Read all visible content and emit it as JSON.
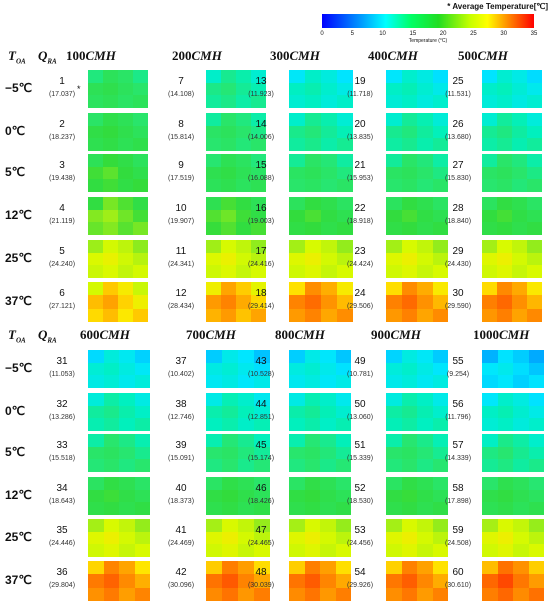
{
  "legend": {
    "title": "* Average Temperature[℃]",
    "ticks": [
      "0",
      "5",
      "10",
      "15",
      "20",
      "25",
      "30",
      "35"
    ],
    "label": "Temperature (°C)"
  },
  "header": {
    "t_main": "T",
    "t_sub": "OA",
    "q_main": "Q",
    "q_sub": "RA",
    "unit": "CMH"
  },
  "blocks": [
    {
      "flows": [
        "100",
        "200",
        "300",
        "400",
        "500"
      ],
      "temps": [
        "−5℃",
        "0℃",
        "5℃",
        "12℃",
        "25℃",
        "37℃"
      ],
      "cases": [
        [
          [
            "1",
            "(17.037)"
          ],
          [
            "7",
            "(14.108)"
          ],
          [
            "13",
            "(11.923)"
          ],
          [
            "19",
            "(11.718)"
          ],
          [
            "25",
            "(11.531)"
          ]
        ],
        [
          [
            "2",
            "(18.237)"
          ],
          [
            "8",
            "(15.814)"
          ],
          [
            "14",
            "(14.006)"
          ],
          [
            "20",
            "(13.835)"
          ],
          [
            "26",
            "(13.680)"
          ]
        ],
        [
          [
            "3",
            "(19.438)"
          ],
          [
            "9",
            "(17.519)"
          ],
          [
            "15",
            "(16.088)"
          ],
          [
            "21",
            "(15.953)"
          ],
          [
            "27",
            "(15.830)"
          ]
        ],
        [
          [
            "4",
            "(21.119)"
          ],
          [
            "10",
            "(19.907)"
          ],
          [
            "16",
            "(19.003)"
          ],
          [
            "22",
            "(18.918)"
          ],
          [
            "28",
            "(18.840)"
          ]
        ],
        [
          [
            "5",
            "(24.240)"
          ],
          [
            "11",
            "(24.341)"
          ],
          [
            "17",
            "(24.416)"
          ],
          [
            "23",
            "(24.424)"
          ],
          [
            "29",
            "(24.430)"
          ]
        ],
        [
          [
            "6",
            "(27.121)"
          ],
          [
            "12",
            "(28.434)"
          ],
          [
            "18",
            "(29.414)"
          ],
          [
            "24",
            "(29.506)"
          ],
          [
            "30",
            "(29.590)"
          ]
        ]
      ]
    },
    {
      "flows": [
        "600",
        "700",
        "800",
        "900",
        "1000"
      ],
      "temps": [
        "−5℃",
        "0℃",
        "5℃",
        "12℃",
        "25℃",
        "37℃"
      ],
      "cases": [
        [
          [
            "31",
            "(11.053)"
          ],
          [
            "37",
            "(10.402)"
          ],
          [
            "43",
            "(10.528)"
          ],
          [
            "49",
            "(10.781)"
          ],
          [
            "55",
            "(9.254)"
          ]
        ],
        [
          [
            "32",
            "(13.286)"
          ],
          [
            "38",
            "(12.746)"
          ],
          [
            "44",
            "(12.851)"
          ],
          [
            "50",
            "(13.060)"
          ],
          [
            "56",
            "(11.796)"
          ]
        ],
        [
          [
            "33",
            "(15.518)"
          ],
          [
            "39",
            "(15.091)"
          ],
          [
            "45",
            "(15.174)"
          ],
          [
            "51",
            "(15.339)"
          ],
          [
            "57",
            "(14.339)"
          ]
        ],
        [
          [
            "34",
            "(18.643)"
          ],
          [
            "40",
            "(18.373)"
          ],
          [
            "46",
            "(18.426)"
          ],
          [
            "52",
            "(18.530)"
          ],
          [
            "58",
            "(17.898)"
          ]
        ],
        [
          [
            "35",
            "(24.446)"
          ],
          [
            "41",
            "(24.469)"
          ],
          [
            "47",
            "(24.465)"
          ],
          [
            "53",
            "(24.456)"
          ],
          [
            "59",
            "(24.508)"
          ]
        ],
        [
          [
            "36",
            "(29.804)"
          ],
          [
            "42",
            "(30.096)"
          ],
          [
            "48",
            "(30.039)"
          ],
          [
            "54",
            "(29.926)"
          ],
          [
            "60",
            "(30.610)"
          ]
        ]
      ]
    }
  ],
  "star_marker": "*"
}
